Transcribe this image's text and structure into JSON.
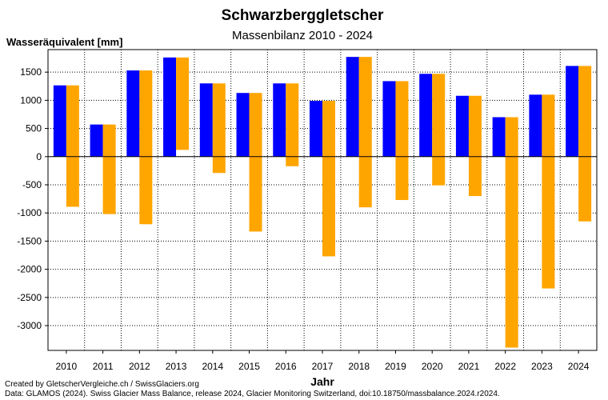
{
  "chart_data": {
    "type": "bar",
    "title": "Schwarzberggletscher",
    "subtitle": "Massenbilanz 2010 - 2024",
    "ylabel": "Wasseräquivalent [mm]",
    "xlabel": "Jahr",
    "categories": [
      "2010",
      "2011",
      "2012",
      "2013",
      "2014",
      "2015",
      "2016",
      "2017",
      "2018",
      "2019",
      "2020",
      "2021",
      "2022",
      "2023",
      "2024"
    ],
    "series": [
      {
        "name": "",
        "color": "#0000ff",
        "values": [
          1265,
          570,
          1530,
          1760,
          1300,
          1130,
          1300,
          990,
          1770,
          1340,
          1470,
          1080,
          700,
          1100,
          1610
        ]
      },
      {
        "name": "",
        "color": "#ffa500",
        "base": [
          1265,
          570,
          1530,
          1760,
          1300,
          1130,
          1300,
          990,
          1770,
          1340,
          1470,
          1080,
          700,
          1100,
          1610
        ],
        "values": [
          -890,
          -1020,
          -1200,
          120,
          -290,
          -1330,
          -170,
          -1770,
          -900,
          -770,
          -510,
          -700,
          -3390,
          -2340,
          -1150
        ]
      }
    ],
    "ylim": [
      -3440,
      1900
    ],
    "yticks": [
      1500,
      1000,
      500,
      0,
      -500,
      -1000,
      -1500,
      -2000,
      -2500,
      -3000
    ],
    "grid": true
  },
  "credits": {
    "line1": "Created by GletscherVergleiche.ch / SwissGlaciers.org",
    "line2": "Data: GLAMOS (2024). Swiss Glacier Mass Balance, release 2024, Glacier Monitoring Switzerland, doi:10.18750/massbalance.2024.r2024."
  }
}
